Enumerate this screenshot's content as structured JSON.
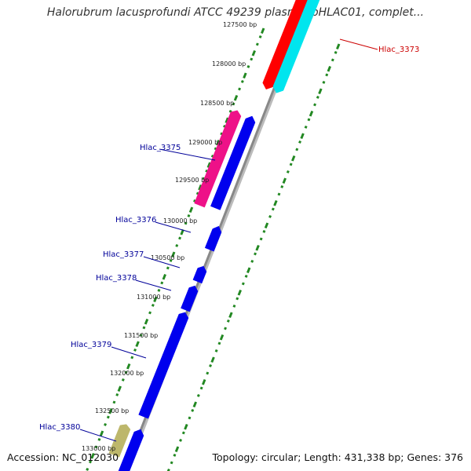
{
  "title": "Halorubrum lacusprofundi ATCC 49239 plasmid pHLAC01, complet...",
  "accession": "Accession: NC_012030",
  "summary": "Topology: circular; Length: 431,338 bp; Genes: 376",
  "colors": {
    "backbone": "#888888",
    "tick_green": "#228822",
    "forward_gene": "#0000ee",
    "reverse_gene": "#ff0000",
    "cyan_gene": "#00e5ee",
    "magenta_gene": "#ee1188",
    "khaki_gene": "#bdb76b",
    "label_blue": "#000099",
    "label_red": "#cc0000"
  },
  "ticks": [
    {
      "label": "127500 bp"
    },
    {
      "label": "128000 bp"
    },
    {
      "label": "128500 bp"
    },
    {
      "label": "129000 bp"
    },
    {
      "label": "129500 bp"
    },
    {
      "label": "130000 bp"
    },
    {
      "label": "130500 bp"
    },
    {
      "label": "131000 bp"
    },
    {
      "label": "131500 bp"
    },
    {
      "label": "132000 bp"
    },
    {
      "label": "132500 bp"
    },
    {
      "label": "133000 bp"
    }
  ],
  "gene_labels": [
    {
      "text": "Hlac_3373",
      "color": "#cc0000"
    },
    {
      "text": "Hlac_3375",
      "color": "#000099"
    },
    {
      "text": "Hlac_3376",
      "color": "#000099"
    },
    {
      "text": "Hlac_3377",
      "color": "#000099"
    },
    {
      "text": "Hlac_3378",
      "color": "#000099"
    },
    {
      "text": "Hlac_3379",
      "color": "#000099"
    },
    {
      "text": "Hlac_3380",
      "color": "#000099"
    }
  ]
}
